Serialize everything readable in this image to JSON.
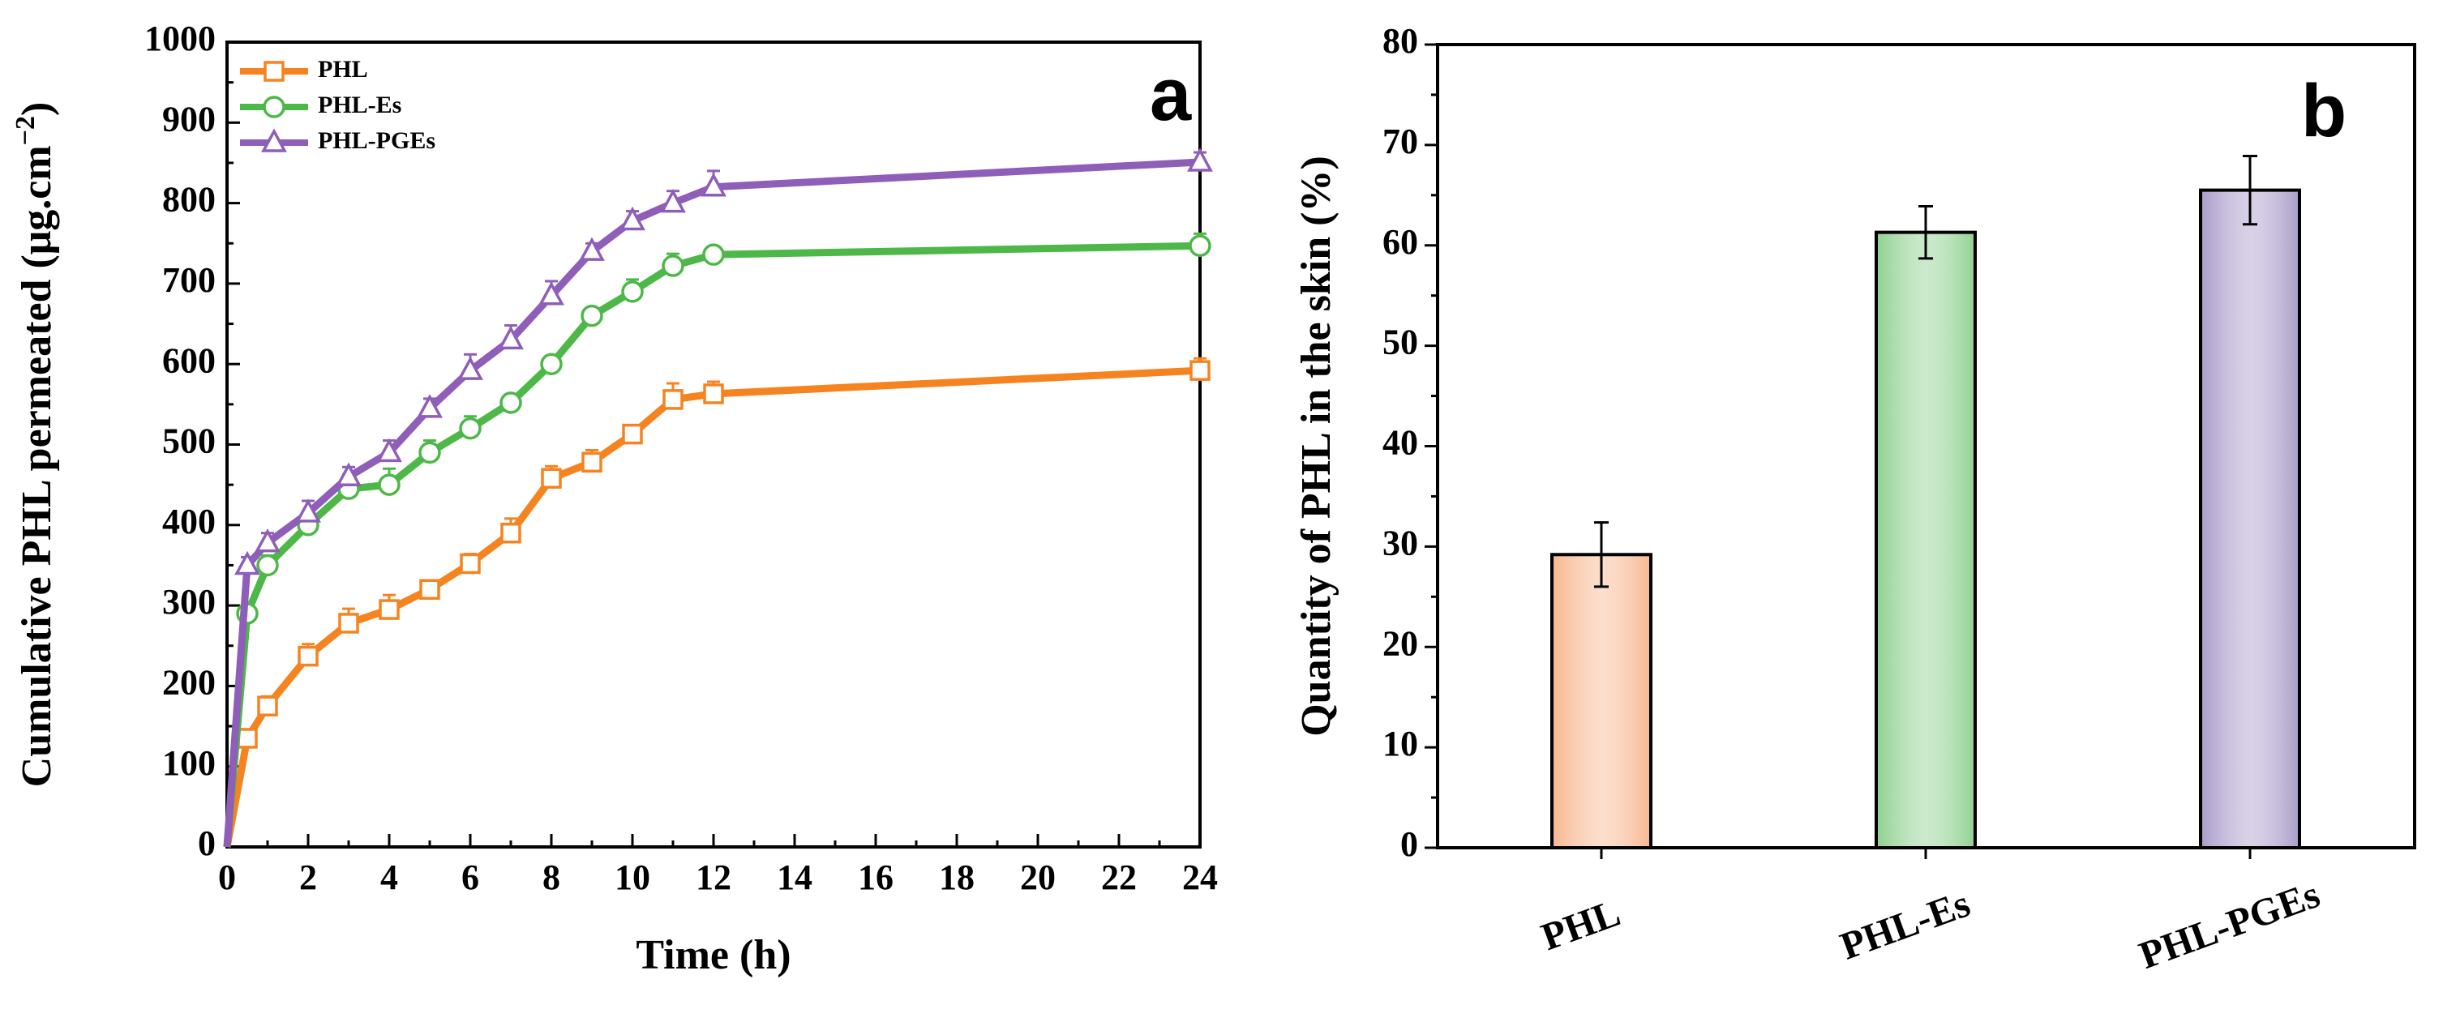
{
  "chart_data": [
    {
      "panel": "a",
      "type": "line",
      "xlabel": "Time (h)",
      "ylabel": "Cumulative PHL permeated (μg.cm",
      "ylabel_sup": "−2",
      "ylabel_close": ")",
      "xlim": [
        0,
        24
      ],
      "ylim": [
        0,
        1000
      ],
      "x_ticks": [
        0,
        2,
        4,
        6,
        8,
        10,
        12,
        14,
        16,
        18,
        20,
        22,
        24
      ],
      "y_ticks": [
        0,
        100,
        200,
        300,
        400,
        500,
        600,
        700,
        800,
        900,
        1000
      ],
      "x": [
        0,
        0.5,
        1,
        2,
        3,
        4,
        5,
        6,
        7,
        8,
        9,
        10,
        11,
        12,
        24
      ],
      "legend_position": "top-left",
      "series": [
        {
          "name": "PHL",
          "marker": "square",
          "color": "#F5831F",
          "values": [
            0,
            135,
            175,
            237,
            278,
            295,
            320,
            352,
            390,
            458,
            478,
            513,
            556,
            563,
            592
          ],
          "errors": [
            0,
            10,
            12,
            15,
            18,
            18,
            10,
            12,
            18,
            15,
            15,
            10,
            20,
            15,
            15
          ]
        },
        {
          "name": "PHL-Es",
          "marker": "circle",
          "color": "#4DB848",
          "values": [
            0,
            290,
            350,
            400,
            445,
            450,
            490,
            520,
            552,
            600,
            660,
            690,
            722,
            736,
            747
          ],
          "errors": [
            0,
            10,
            12,
            10,
            18,
            20,
            15,
            15,
            10,
            10,
            10,
            15,
            15,
            10,
            15
          ]
        },
        {
          "name": "PHL-PGEs",
          "marker": "triangle",
          "color": "#8E5EB8",
          "values": [
            0,
            350,
            378,
            415,
            460,
            490,
            545,
            592,
            630,
            685,
            740,
            778,
            800,
            820,
            851
          ],
          "errors": [
            0,
            10,
            12,
            15,
            12,
            15,
            12,
            20,
            18,
            18,
            10,
            12,
            15,
            20,
            12
          ]
        }
      ]
    },
    {
      "panel": "b",
      "type": "bar",
      "xlabel": "",
      "ylabel": "Quantity of PHL in the skin (%)",
      "ylim": [
        0,
        80
      ],
      "y_ticks": [
        0,
        10,
        20,
        30,
        40,
        50,
        60,
        70,
        80
      ],
      "categories": [
        "PHL",
        "PHL-Es",
        "PHL-PGEs"
      ],
      "values": [
        29.2,
        61.3,
        65.5
      ],
      "errors": [
        3.2,
        2.6,
        3.4
      ],
      "colors": [
        "#F7B68E",
        "#8DD08E",
        "#A99BC9"
      ]
    }
  ]
}
